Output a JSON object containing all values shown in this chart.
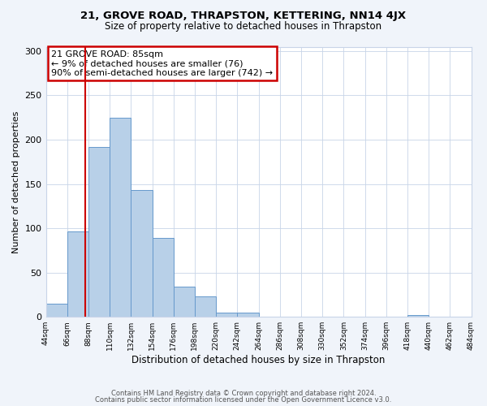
{
  "title1": "21, GROVE ROAD, THRAPSTON, KETTERING, NN14 4JX",
  "title2": "Size of property relative to detached houses in Thrapston",
  "xlabel": "Distribution of detached houses by size in Thrapston",
  "ylabel": "Number of detached properties",
  "bar_values": [
    15,
    96,
    192,
    225,
    143,
    89,
    34,
    23,
    5,
    5,
    0,
    0,
    0,
    0,
    0,
    0,
    0,
    2,
    0,
    0
  ],
  "bin_edges": [
    44,
    66,
    88,
    110,
    132,
    154,
    176,
    198,
    220,
    242,
    264,
    286,
    308,
    330,
    352,
    374,
    396,
    418,
    440,
    462,
    484
  ],
  "tick_labels": [
    "44sqm",
    "66sqm",
    "88sqm",
    "110sqm",
    "132sqm",
    "154sqm",
    "176sqm",
    "198sqm",
    "220sqm",
    "242sqm",
    "264sqm",
    "286sqm",
    "308sqm",
    "330sqm",
    "352sqm",
    "374sqm",
    "396sqm",
    "418sqm",
    "440sqm",
    "462sqm",
    "484sqm"
  ],
  "property_line_x": 85,
  "bar_color": "#b8d0e8",
  "bar_edge_color": "#6699cc",
  "property_line_color": "#cc0000",
  "annotation_box_color": "#cc0000",
  "ylim": [
    0,
    305
  ],
  "yticks": [
    0,
    50,
    100,
    150,
    200,
    250,
    300
  ],
  "annotation_title": "21 GROVE ROAD: 85sqm",
  "annotation_line1": "← 9% of detached houses are smaller (76)",
  "annotation_line2": "90% of semi-detached houses are larger (742) →",
  "footer1": "Contains HM Land Registry data © Crown copyright and database right 2024.",
  "footer2": "Contains public sector information licensed under the Open Government Licence v3.0.",
  "bg_color": "#f0f4fa",
  "plot_bg_color": "#ffffff",
  "grid_color": "#c8d4e8"
}
